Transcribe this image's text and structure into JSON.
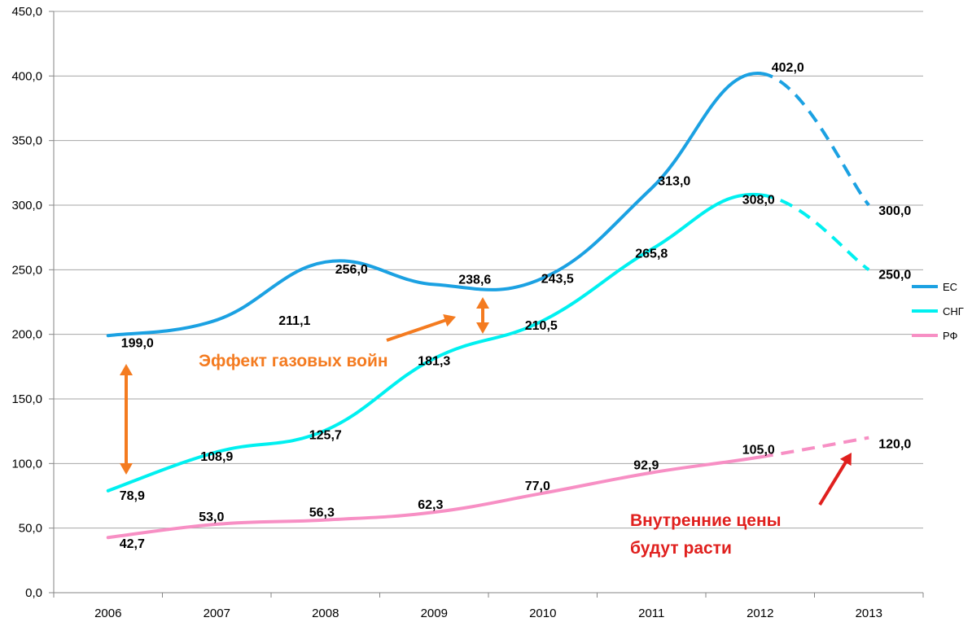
{
  "chart_data": {
    "type": "line",
    "title": "",
    "xlabel": "",
    "ylabel": "",
    "categories": [
      "2006",
      "2007",
      "2008",
      "2009",
      "2010",
      "2011",
      "2012",
      "2013"
    ],
    "ylim": [
      0,
      450
    ],
    "y_ticks": [
      "0,0",
      "50,0",
      "100,0",
      "150,0",
      "200,0",
      "250,0",
      "300,0",
      "350,0",
      "400,0",
      "450,0"
    ],
    "grid": true,
    "smooth": true,
    "legend_position": "right",
    "series": [
      {
        "name": "ЕС",
        "color": "#1ba1e2",
        "values": [
          199.0,
          211.1,
          256.0,
          238.6,
          243.5,
          313.0,
          402.0,
          300.0
        ],
        "labels": [
          "199,0",
          "211,1",
          "256,0",
          "238,6",
          "243,5",
          "313,0",
          "402,0",
          "300,0"
        ],
        "dashed_last_segment": true
      },
      {
        "name": "СНГ",
        "color": "#00f0f0",
        "values": [
          78.9,
          108.9,
          125.7,
          181.3,
          210.5,
          265.8,
          308.0,
          250.0
        ],
        "labels": [
          "78,9",
          "108,9",
          "125,7",
          "181,3",
          "210,5",
          "265,8",
          "308,0",
          "250,0"
        ],
        "dashed_last_segment": true
      },
      {
        "name": "РФ",
        "color": "#f78fc4",
        "values": [
          42.7,
          53.0,
          56.3,
          62.3,
          77.0,
          92.9,
          105.0,
          120.0
        ],
        "labels": [
          "42,7",
          "53,0",
          "56,3",
          "62,3",
          "77,0",
          "92,9",
          "105,0",
          "120,0"
        ],
        "dashed_last_segment": true
      }
    ],
    "annotations": [
      {
        "text": "Эффект газовых войн",
        "color": "#f47b20"
      },
      {
        "lines": [
          "Внутренние цены",
          "будут расти"
        ],
        "color": "#e0201e"
      }
    ]
  }
}
